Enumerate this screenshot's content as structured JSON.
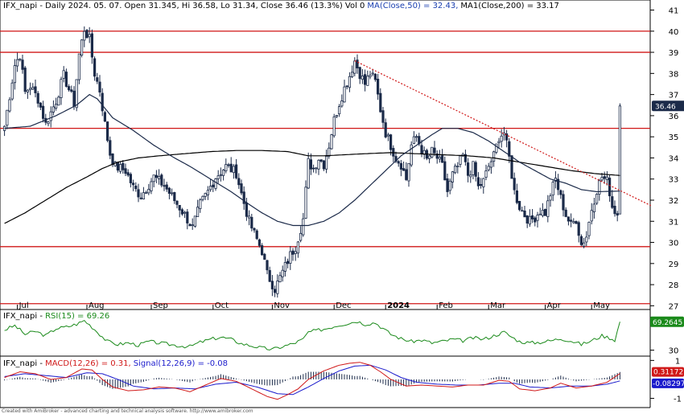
{
  "header": {
    "price_title": "IFX_napi - Daily 2024. 05. 07. Open 31.345, Hi 36.58, Lo 31.34, Close 36.46 (13.3%) Vol 0",
    "ma50_label": "MA(Close,50) = 32.43,",
    "ma200_label": "MA1(Close,200) = 33.17",
    "rsi_prefix": "IFX_napi - ",
    "rsi_label": "RSI(15) = 69.26",
    "macd_prefix": "IFX_napi - ",
    "macd_label": "MACD(12,26) = 0.31,",
    "signal_label": "Signal(12,26,9) = -0.08"
  },
  "footer": {
    "text": "Created with AmiBroker - advanced charting and technical analysis software. http://www.amibroker.com"
  },
  "badges": {
    "price": "36.46",
    "rsi": "69.2645",
    "macd": "0.31172",
    "signal": "-0.082974"
  },
  "colors": {
    "candle": "#1b2a49",
    "ma50": "#1b2a49",
    "ma200": "#000000",
    "support_lines": "#d01818",
    "trendline": "#d01818",
    "rsi": "#1a8a1a",
    "macd": "#d01818",
    "signal": "#1a1acc",
    "histogram": "#1b2a49",
    "price_badge_bg": "#1b2a49",
    "rsi_badge_bg": "#1a8a1a",
    "macd_badge_bg": "#d01818",
    "signal_badge_bg": "#1a1acc"
  },
  "chart_data": [
    {
      "type": "candlestick",
      "title": "IFX_napi - Daily",
      "y_ticks": [
        27,
        28,
        29,
        30,
        31,
        32,
        33,
        34,
        35,
        36,
        37,
        38,
        39,
        40,
        41
      ],
      "ylim": [
        26.9,
        41.4
      ],
      "x_tick_labels": [
        "Jul",
        "Aug",
        "Sep",
        "Oct",
        "Nov",
        "Dec",
        "2024",
        "Feb",
        "Mar",
        "Apr",
        "May"
      ],
      "x_tick_index": [
        5,
        32,
        57,
        81,
        104,
        128,
        148,
        168,
        188,
        210,
        228
      ],
      "horizontal_levels": [
        40,
        39,
        35.4,
        29.8,
        27.1
      ],
      "trendline": {
        "from": [
          136,
          38.6
        ],
        "to": [
          240,
          32.4
        ]
      },
      "anchors": [
        [
          0,
          35.5
        ],
        [
          4,
          38.4
        ],
        [
          6,
          38.9
        ],
        [
          8,
          37.1
        ],
        [
          10,
          37.4
        ],
        [
          13,
          36.8
        ],
        [
          16,
          35.6
        ],
        [
          20,
          36.7
        ],
        [
          23,
          37.9
        ],
        [
          27,
          36.6
        ],
        [
          29,
          38.9
        ],
        [
          31,
          40.1
        ],
        [
          33,
          39.6
        ],
        [
          35,
          38.0
        ],
        [
          37,
          37.2
        ],
        [
          39,
          35.6
        ],
        [
          41,
          34.2
        ],
        [
          43,
          33.6
        ],
        [
          47,
          33.4
        ],
        [
          50,
          32.6
        ],
        [
          53,
          32.2
        ],
        [
          58,
          33.1
        ],
        [
          62,
          32.7
        ],
        [
          66,
          32.0
        ],
        [
          70,
          31.3
        ],
        [
          73,
          30.7
        ],
        [
          76,
          31.8
        ],
        [
          79,
          32.4
        ],
        [
          82,
          33.1
        ],
        [
          86,
          33.6
        ],
        [
          90,
          33.3
        ],
        [
          92,
          32.3
        ],
        [
          95,
          31.0
        ],
        [
          97,
          30.4
        ],
        [
          100,
          29.6
        ],
        [
          102,
          28.5
        ],
        [
          105,
          27.8
        ],
        [
          108,
          28.6
        ],
        [
          111,
          29.4
        ],
        [
          113,
          29.8
        ],
        [
          116,
          31.1
        ],
        [
          118,
          33.8
        ],
        [
          120,
          33.5
        ],
        [
          122,
          34.0
        ],
        [
          124,
          33.7
        ],
        [
          126,
          34.6
        ],
        [
          128,
          35.8
        ],
        [
          130,
          36.6
        ],
        [
          132,
          37.3
        ],
        [
          134,
          37.9
        ],
        [
          136,
          38.6
        ],
        [
          138,
          38.0
        ],
        [
          140,
          37.5
        ],
        [
          142,
          38.0
        ],
        [
          144,
          37.6
        ],
        [
          146,
          36.3
        ],
        [
          148,
          35.2
        ],
        [
          150,
          34.6
        ],
        [
          152,
          34.0
        ],
        [
          154,
          33.7
        ],
        [
          156,
          33.0
        ],
        [
          158,
          34.6
        ],
        [
          160,
          35.0
        ],
        [
          162,
          34.4
        ],
        [
          164,
          33.9
        ],
        [
          166,
          34.3
        ],
        [
          168,
          34.0
        ],
        [
          170,
          33.6
        ],
        [
          172,
          32.4
        ],
        [
          174,
          33.2
        ],
        [
          176,
          33.6
        ],
        [
          178,
          34.1
        ],
        [
          180,
          33.2
        ],
        [
          182,
          33.6
        ],
        [
          184,
          32.6
        ],
        [
          186,
          32.9
        ],
        [
          188,
          33.6
        ],
        [
          190,
          34.1
        ],
        [
          192,
          35.0
        ],
        [
          194,
          35.2
        ],
        [
          196,
          34.0
        ],
        [
          198,
          32.4
        ],
        [
          200,
          31.7
        ],
        [
          202,
          31.3
        ],
        [
          204,
          31.0
        ],
        [
          206,
          31.2
        ],
        [
          208,
          31.5
        ],
        [
          210,
          31.4
        ],
        [
          212,
          32.3
        ],
        [
          214,
          33.0
        ],
        [
          216,
          32.1
        ],
        [
          218,
          31.3
        ],
        [
          220,
          30.8
        ],
        [
          222,
          31.1
        ],
        [
          224,
          29.9
        ],
        [
          226,
          30.3
        ],
        [
          228,
          31.6
        ],
        [
          230,
          32.5
        ],
        [
          232,
          33.1
        ],
        [
          234,
          32.9
        ],
        [
          235,
          32.4
        ],
        [
          236,
          31.7
        ],
        [
          237,
          31.5
        ],
        [
          238,
          31.345
        ]
      ],
      "last_candle": {
        "open": 31.345,
        "high": 36.58,
        "low": 31.34,
        "close": 36.46
      },
      "ma50_anchors": [
        [
          0,
          35.4
        ],
        [
          10,
          35.5
        ],
        [
          20,
          36.0
        ],
        [
          28,
          36.5
        ],
        [
          33,
          37.0
        ],
        [
          36,
          36.8
        ],
        [
          42,
          35.9
        ],
        [
          50,
          35.3
        ],
        [
          58,
          34.6
        ],
        [
          66,
          34.0
        ],
        [
          72,
          33.6
        ],
        [
          80,
          33.0
        ],
        [
          88,
          32.4
        ],
        [
          95,
          31.8
        ],
        [
          100,
          31.4
        ],
        [
          106,
          31.0
        ],
        [
          112,
          30.8
        ],
        [
          118,
          30.8
        ],
        [
          124,
          31.0
        ],
        [
          130,
          31.4
        ],
        [
          136,
          32.0
        ],
        [
          142,
          32.7
        ],
        [
          148,
          33.4
        ],
        [
          154,
          34.1
        ],
        [
          160,
          34.6
        ],
        [
          166,
          35.1
        ],
        [
          170,
          35.4
        ],
        [
          176,
          35.4
        ],
        [
          182,
          35.2
        ],
        [
          188,
          34.8
        ],
        [
          194,
          34.3
        ],
        [
          200,
          33.8
        ],
        [
          206,
          33.4
        ],
        [
          212,
          33.0
        ],
        [
          218,
          32.8
        ],
        [
          224,
          32.5
        ],
        [
          230,
          32.4
        ],
        [
          239,
          32.43
        ]
      ],
      "ma200_anchors": [
        [
          0,
          30.9
        ],
        [
          8,
          31.4
        ],
        [
          16,
          32.0
        ],
        [
          24,
          32.6
        ],
        [
          32,
          33.1
        ],
        [
          38,
          33.5
        ],
        [
          44,
          33.8
        ],
        [
          52,
          34.0
        ],
        [
          60,
          34.1
        ],
        [
          70,
          34.2
        ],
        [
          80,
          34.3
        ],
        [
          90,
          34.35
        ],
        [
          100,
          34.35
        ],
        [
          110,
          34.3
        ],
        [
          118,
          34.1
        ],
        [
          124,
          34.1
        ],
        [
          132,
          34.15
        ],
        [
          140,
          34.2
        ],
        [
          150,
          34.25
        ],
        [
          160,
          34.2
        ],
        [
          170,
          34.15
        ],
        [
          180,
          34.1
        ],
        [
          190,
          34.0
        ],
        [
          200,
          33.8
        ],
        [
          210,
          33.6
        ],
        [
          220,
          33.4
        ],
        [
          230,
          33.25
        ],
        [
          239,
          33.17
        ]
      ]
    },
    {
      "type": "line",
      "title": "RSI(15)",
      "y_ticks": [
        30
      ],
      "ylim": [
        24,
        84
      ],
      "anchors": [
        [
          0,
          58
        ],
        [
          4,
          64
        ],
        [
          8,
          52
        ],
        [
          12,
          56
        ],
        [
          16,
          50
        ],
        [
          20,
          60
        ],
        [
          24,
          62
        ],
        [
          28,
          66
        ],
        [
          31,
          71
        ],
        [
          34,
          62
        ],
        [
          37,
          52
        ],
        [
          40,
          42
        ],
        [
          44,
          38
        ],
        [
          48,
          40
        ],
        [
          52,
          37
        ],
        [
          56,
          42
        ],
        [
          60,
          40
        ],
        [
          64,
          38
        ],
        [
          68,
          36
        ],
        [
          72,
          35
        ],
        [
          76,
          41
        ],
        [
          80,
          45
        ],
        [
          84,
          48
        ],
        [
          88,
          45
        ],
        [
          92,
          39
        ],
        [
          96,
          36
        ],
        [
          100,
          33
        ],
        [
          104,
          31
        ],
        [
          108,
          35
        ],
        [
          112,
          39
        ],
        [
          116,
          45
        ],
        [
          118,
          55
        ],
        [
          121,
          57
        ],
        [
          125,
          60
        ],
        [
          129,
          64
        ],
        [
          133,
          67
        ],
        [
          137,
          70
        ],
        [
          140,
          66
        ],
        [
          144,
          68
        ],
        [
          147,
          60
        ],
        [
          150,
          52
        ],
        [
          154,
          46
        ],
        [
          158,
          42
        ],
        [
          162,
          44
        ],
        [
          166,
          40
        ],
        [
          170,
          42
        ],
        [
          174,
          45
        ],
        [
          178,
          43
        ],
        [
          182,
          47
        ],
        [
          186,
          45
        ],
        [
          190,
          50
        ],
        [
          194,
          55
        ],
        [
          197,
          48
        ],
        [
          200,
          42
        ],
        [
          204,
          40
        ],
        [
          208,
          41
        ],
        [
          212,
          43
        ],
        [
          216,
          46
        ],
        [
          220,
          43
        ],
        [
          224,
          38
        ],
        [
          228,
          43
        ],
        [
          232,
          50
        ],
        [
          235,
          47
        ],
        [
          237,
          44
        ],
        [
          239,
          69.26
        ]
      ]
    },
    {
      "type": "line",
      "title": "MACD(12,26) / Signal(12,26,9)",
      "ylim": [
        -1.4,
        1.1
      ],
      "y_ticks": [
        1,
        -1
      ],
      "macd_anchors": [
        [
          0,
          0.1
        ],
        [
          6,
          0.4
        ],
        [
          12,
          0.3
        ],
        [
          18,
          0.0
        ],
        [
          24,
          0.1
        ],
        [
          30,
          0.55
        ],
        [
          34,
          0.5
        ],
        [
          38,
          0.0
        ],
        [
          42,
          -0.4
        ],
        [
          48,
          -0.6
        ],
        [
          54,
          -0.55
        ],
        [
          60,
          -0.4
        ],
        [
          66,
          -0.45
        ],
        [
          72,
          -0.65
        ],
        [
          78,
          -0.3
        ],
        [
          84,
          0.05
        ],
        [
          90,
          -0.1
        ],
        [
          96,
          -0.5
        ],
        [
          102,
          -0.9
        ],
        [
          106,
          -1.05
        ],
        [
          110,
          -0.8
        ],
        [
          114,
          -0.5
        ],
        [
          118,
          0.0
        ],
        [
          124,
          0.45
        ],
        [
          130,
          0.75
        ],
        [
          134,
          0.85
        ],
        [
          138,
          0.9
        ],
        [
          142,
          0.75
        ],
        [
          146,
          0.4
        ],
        [
          150,
          0.0
        ],
        [
          156,
          -0.35
        ],
        [
          162,
          -0.3
        ],
        [
          168,
          -0.35
        ],
        [
          174,
          -0.4
        ],
        [
          180,
          -0.3
        ],
        [
          186,
          -0.3
        ],
        [
          192,
          -0.05
        ],
        [
          196,
          -0.1
        ],
        [
          200,
          -0.5
        ],
        [
          206,
          -0.6
        ],
        [
          212,
          -0.45
        ],
        [
          216,
          -0.2
        ],
        [
          222,
          -0.45
        ],
        [
          228,
          -0.35
        ],
        [
          234,
          -0.15
        ],
        [
          239,
          0.31
        ]
      ],
      "signal_anchors": [
        [
          0,
          0.15
        ],
        [
          8,
          0.3
        ],
        [
          16,
          0.2
        ],
        [
          24,
          0.1
        ],
        [
          32,
          0.35
        ],
        [
          38,
          0.3
        ],
        [
          44,
          0.0
        ],
        [
          50,
          -0.35
        ],
        [
          58,
          -0.5
        ],
        [
          66,
          -0.45
        ],
        [
          74,
          -0.5
        ],
        [
          82,
          -0.25
        ],
        [
          90,
          -0.15
        ],
        [
          98,
          -0.4
        ],
        [
          106,
          -0.75
        ],
        [
          112,
          -0.8
        ],
        [
          118,
          -0.4
        ],
        [
          124,
          0.05
        ],
        [
          130,
          0.45
        ],
        [
          136,
          0.7
        ],
        [
          142,
          0.75
        ],
        [
          148,
          0.5
        ],
        [
          154,
          0.1
        ],
        [
          160,
          -0.15
        ],
        [
          168,
          -0.25
        ],
        [
          176,
          -0.3
        ],
        [
          184,
          -0.3
        ],
        [
          192,
          -0.2
        ],
        [
          198,
          -0.2
        ],
        [
          204,
          -0.4
        ],
        [
          212,
          -0.45
        ],
        [
          220,
          -0.35
        ],
        [
          228,
          -0.35
        ],
        [
          234,
          -0.25
        ],
        [
          239,
          -0.08
        ]
      ]
    }
  ]
}
